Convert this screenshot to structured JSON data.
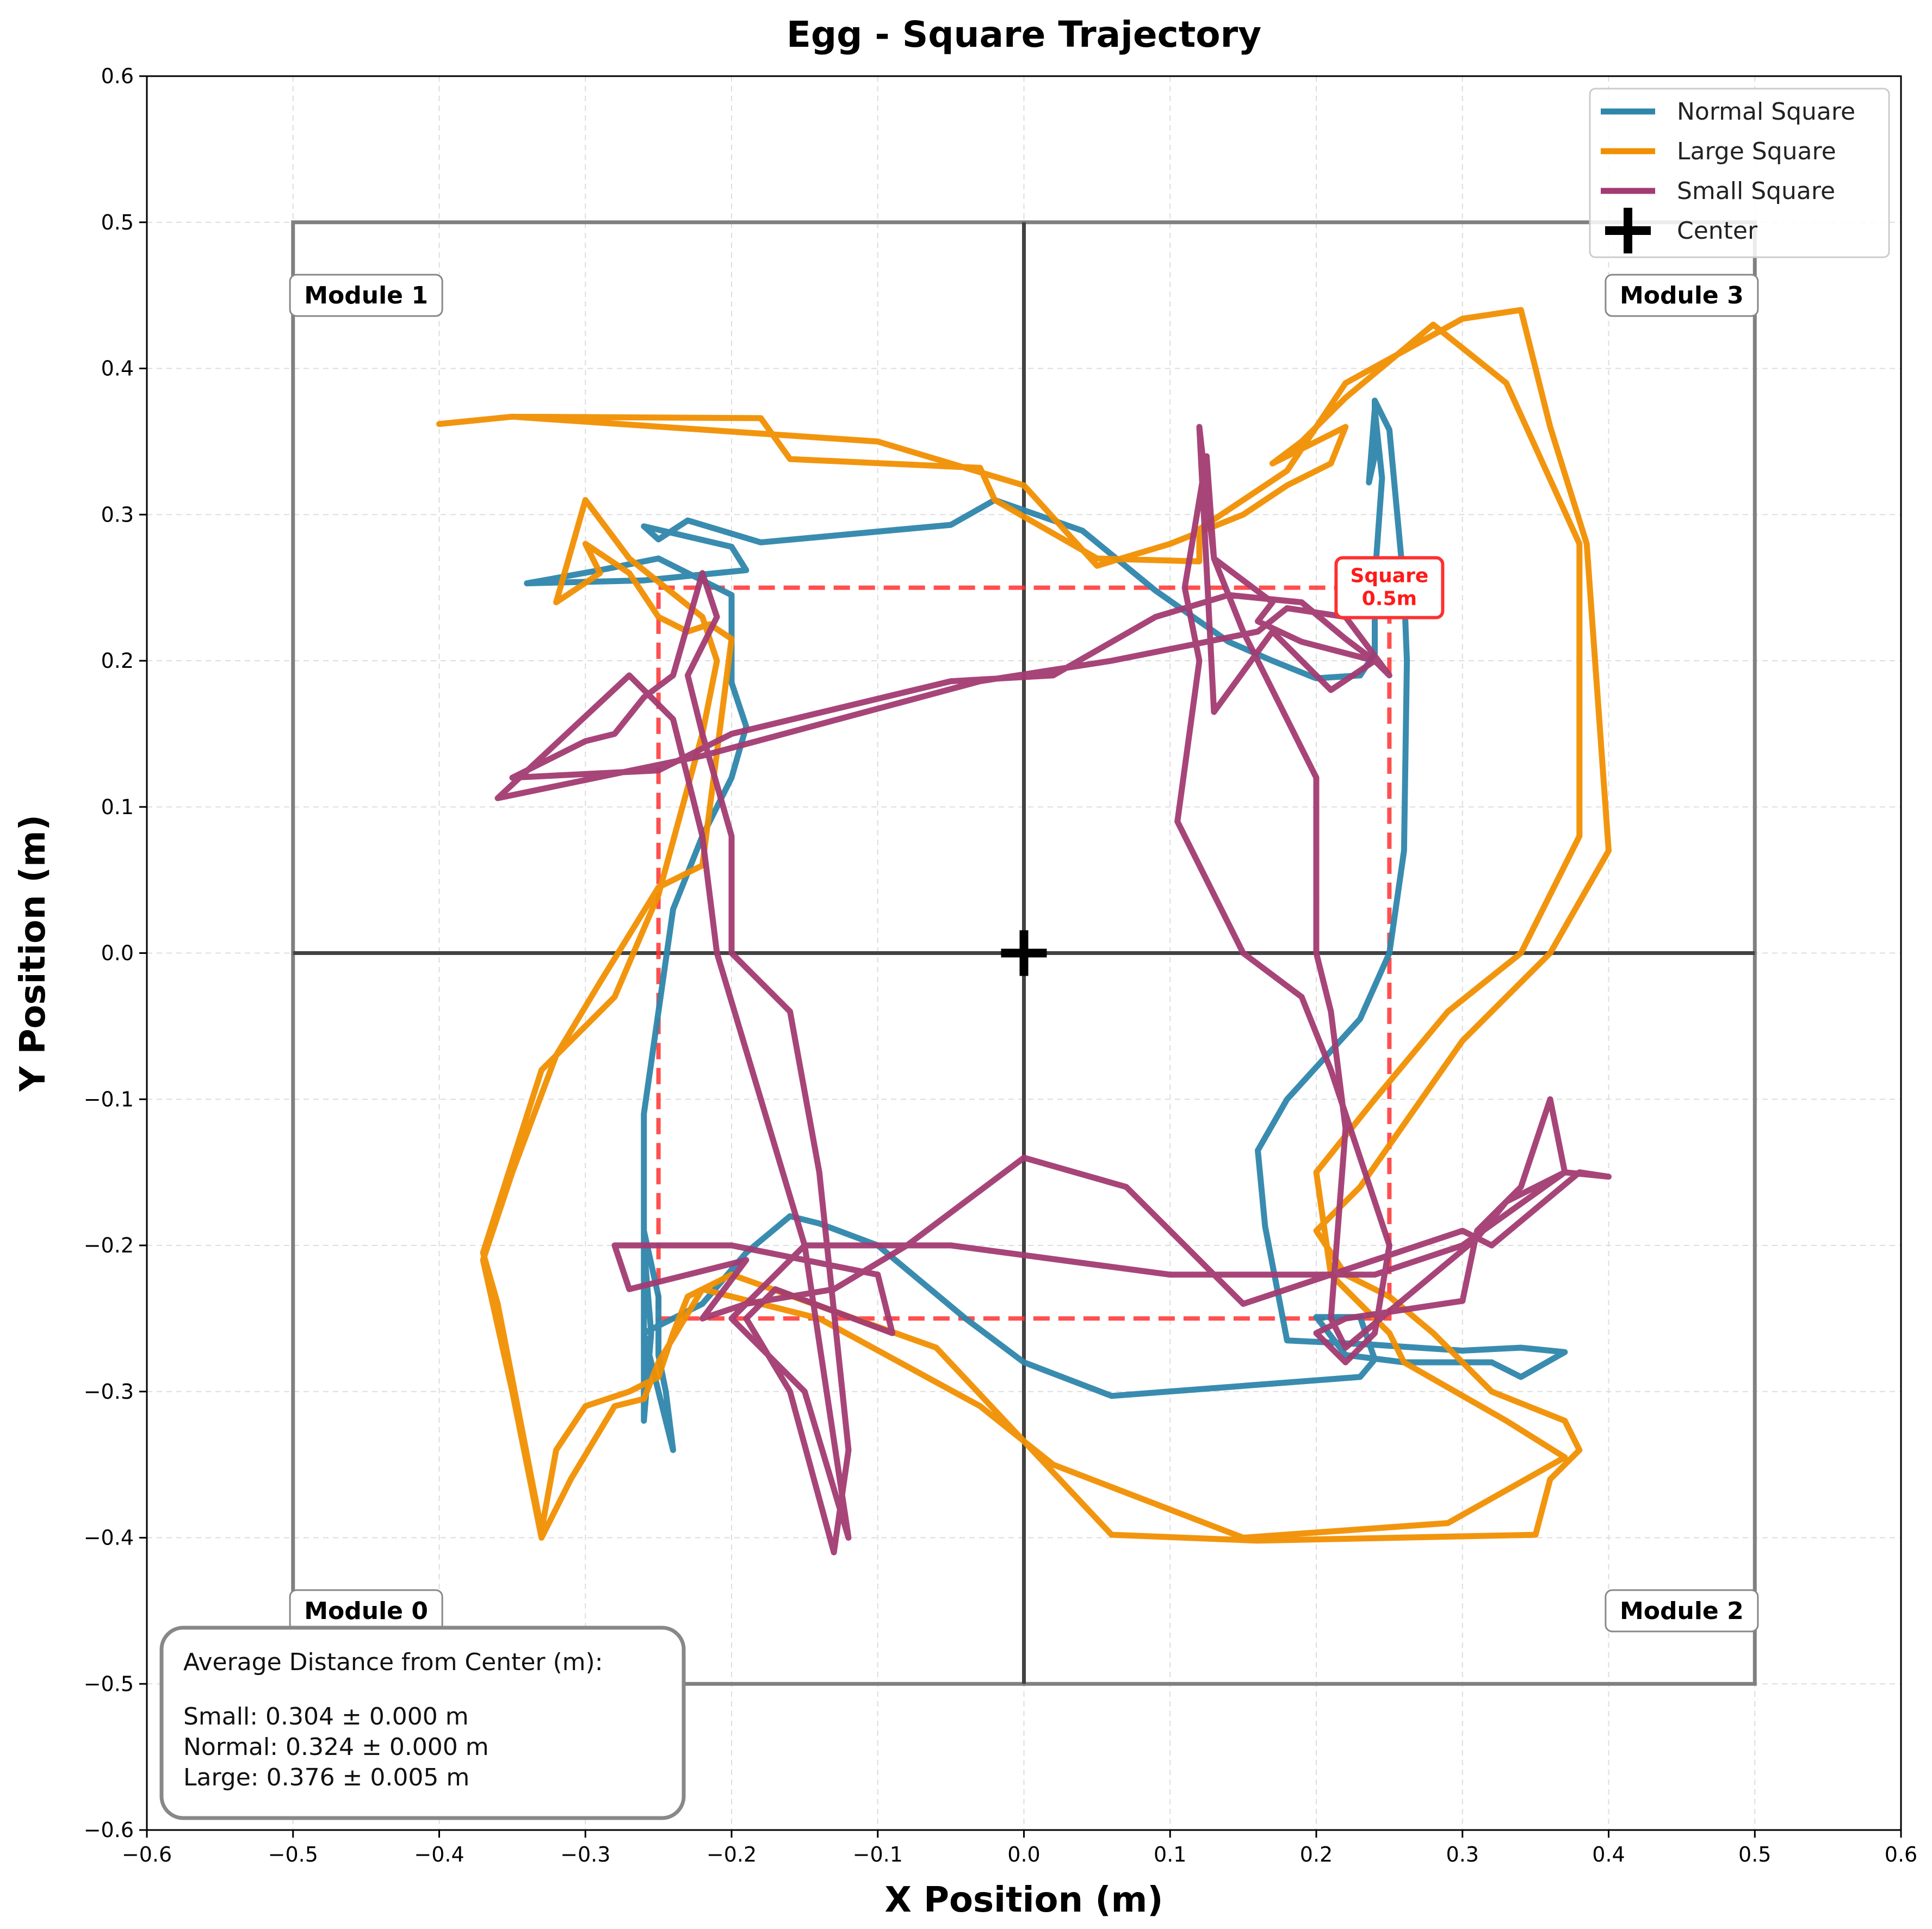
{
  "chart_data": {
    "type": "line",
    "title": "Egg - Square Trajectory",
    "xlabel": "X Position (m)",
    "ylabel": "Y Position (m)",
    "xlim": [
      -0.6,
      0.6
    ],
    "ylim": [
      -0.6,
      0.6
    ],
    "xticks": [
      "−0.6",
      "−0.5",
      "−0.4",
      "−0.3",
      "−0.2",
      "−0.1",
      "0.0",
      "0.1",
      "0.2",
      "0.3",
      "0.4",
      "0.5",
      "0.6"
    ],
    "yticks": [
      "−0.6",
      "−0.5",
      "−0.4",
      "−0.3",
      "−0.2",
      "−0.1",
      "0.0",
      "0.1",
      "0.2",
      "0.3",
      "0.4",
      "0.5",
      "0.6"
    ],
    "grid": true,
    "legend_position": "top-right",
    "legend": [
      "Normal Square",
      "Large Square",
      "Small Square",
      "Center"
    ],
    "colors": {
      "normal": "#2e86ab",
      "large": "#f18f01",
      "small": "#a23b72",
      "center": "#000000",
      "target_square": "#ff3030",
      "modules": "#808080"
    },
    "modules": [
      {
        "label": "Module 0",
        "x": -0.5,
        "y": -0.5,
        "w": 0.5,
        "h": 0.5,
        "label_x": -0.45,
        "label_y": -0.45
      },
      {
        "label": "Module 1",
        "x": -0.5,
        "y": 0.0,
        "w": 0.5,
        "h": 0.5,
        "label_x": -0.45,
        "label_y": 0.45
      },
      {
        "label": "Module 2",
        "x": 0.0,
        "y": -0.5,
        "w": 0.5,
        "h": 0.5,
        "label_x": 0.45,
        "label_y": -0.45
      },
      {
        "label": "Module 3",
        "x": 0.0,
        "y": 0.0,
        "w": 0.5,
        "h": 0.5,
        "label_x": 0.45,
        "label_y": 0.45
      }
    ],
    "target_square": {
      "label": "Square\n0.5m",
      "x0": -0.25,
      "y0": -0.25,
      "x1": 0.25,
      "y1": 0.25,
      "label_x": 0.25,
      "label_y": 0.25
    },
    "center_marker": {
      "name": "Center",
      "x": 0.0,
      "y": 0.0
    },
    "stats_box": {
      "title": "Average Distance from Center (m):",
      "lines": [
        "Small: 0.304 ± 0.000 m",
        "Normal: 0.324 ± 0.000 m",
        "Large: 0.376 ± 0.005 m"
      ]
    },
    "series": [
      {
        "name": "Normal Square",
        "key": "normal",
        "points": [
          [
            -0.34,
            0.253
          ],
          [
            -0.26,
            0.255
          ],
          [
            -0.19,
            0.262
          ],
          [
            -0.2,
            0.278
          ],
          [
            -0.26,
            0.292
          ],
          [
            -0.25,
            0.283
          ],
          [
            -0.23,
            0.296
          ],
          [
            -0.18,
            0.281
          ],
          [
            -0.05,
            0.293
          ],
          [
            -0.02,
            0.31
          ],
          [
            0.04,
            0.289
          ],
          [
            0.09,
            0.248
          ],
          [
            0.14,
            0.213
          ],
          [
            0.17,
            0.2
          ],
          [
            0.2,
            0.188
          ],
          [
            0.23,
            0.19
          ],
          [
            0.24,
            0.205
          ],
          [
            0.24,
            0.256
          ],
          [
            0.245,
            0.325
          ],
          [
            0.24,
            0.372
          ],
          [
            0.236,
            0.322
          ],
          [
            0.24,
            0.34
          ],
          [
            0.24,
            0.378
          ],
          [
            0.25,
            0.358
          ],
          [
            0.26,
            0.25
          ],
          [
            0.262,
            0.2
          ],
          [
            0.26,
            0.07
          ],
          [
            0.25,
            0.0
          ],
          [
            0.23,
            -0.045
          ],
          [
            0.18,
            -0.1
          ],
          [
            0.16,
            -0.135
          ],
          [
            0.165,
            -0.187
          ],
          [
            0.18,
            -0.265
          ],
          [
            0.24,
            -0.268
          ],
          [
            0.3,
            -0.272
          ],
          [
            0.34,
            -0.27
          ],
          [
            0.37,
            -0.273
          ],
          [
            0.34,
            -0.29
          ],
          [
            0.32,
            -0.28
          ],
          [
            0.26,
            -0.28
          ],
          [
            0.22,
            -0.275
          ],
          [
            0.2,
            -0.249
          ],
          [
            0.23,
            -0.249
          ],
          [
            0.24,
            -0.278
          ],
          [
            0.23,
            -0.29
          ],
          [
            0.06,
            -0.303
          ],
          [
            0.0,
            -0.28
          ],
          [
            -0.04,
            -0.25
          ],
          [
            -0.1,
            -0.2
          ],
          [
            -0.14,
            -0.185
          ],
          [
            -0.16,
            -0.18
          ],
          [
            -0.19,
            -0.205
          ],
          [
            -0.22,
            -0.24
          ],
          [
            -0.26,
            -0.26
          ],
          [
            -0.24,
            -0.34
          ],
          [
            -0.245,
            -0.3
          ],
          [
            -0.25,
            -0.275
          ],
          [
            -0.25,
            -0.235
          ],
          [
            -0.26,
            -0.19
          ],
          [
            -0.26,
            -0.22
          ],
          [
            -0.26,
            -0.32
          ],
          [
            -0.255,
            -0.26
          ],
          [
            -0.26,
            -0.2
          ],
          [
            -0.26,
            -0.11
          ],
          [
            -0.25,
            -0.04
          ],
          [
            -0.24,
            0.03
          ],
          [
            -0.22,
            0.08
          ],
          [
            -0.2,
            0.12
          ],
          [
            -0.19,
            0.155
          ],
          [
            -0.2,
            0.185
          ],
          [
            -0.2,
            0.245
          ],
          [
            -0.25,
            0.27
          ],
          [
            -0.29,
            0.262
          ],
          [
            -0.34,
            0.253
          ]
        ]
      },
      {
        "name": "Large Square",
        "key": "large",
        "points": [
          [
            -0.4,
            0.362
          ],
          [
            -0.35,
            0.367
          ],
          [
            -0.18,
            0.366
          ],
          [
            -0.16,
            0.338
          ],
          [
            -0.03,
            0.332
          ],
          [
            -0.02,
            0.31
          ],
          [
            0.05,
            0.27
          ],
          [
            0.12,
            0.268
          ],
          [
            0.12,
            0.29
          ],
          [
            0.18,
            0.33
          ],
          [
            0.22,
            0.39
          ],
          [
            0.3,
            0.434
          ],
          [
            0.34,
            0.44
          ],
          [
            0.36,
            0.36
          ],
          [
            0.385,
            0.28
          ],
          [
            0.4,
            0.07
          ],
          [
            0.36,
            0.0
          ],
          [
            0.3,
            -0.06
          ],
          [
            0.23,
            -0.16
          ],
          [
            0.2,
            -0.19
          ],
          [
            0.22,
            -0.22
          ],
          [
            0.25,
            -0.235
          ],
          [
            0.28,
            -0.26
          ],
          [
            0.3,
            -0.28
          ],
          [
            0.32,
            -0.3
          ],
          [
            0.37,
            -0.32
          ],
          [
            0.38,
            -0.34
          ],
          [
            0.36,
            -0.36
          ],
          [
            0.35,
            -0.398
          ],
          [
            0.16,
            -0.402
          ],
          [
            0.06,
            -0.398
          ],
          [
            -0.06,
            -0.27
          ],
          [
            -0.2,
            -0.22
          ],
          [
            -0.23,
            -0.235
          ],
          [
            -0.24,
            -0.26
          ],
          [
            -0.25,
            -0.29
          ],
          [
            -0.27,
            -0.3
          ],
          [
            -0.3,
            -0.31
          ],
          [
            -0.32,
            -0.34
          ],
          [
            -0.33,
            -0.395
          ],
          [
            -0.36,
            -0.24
          ],
          [
            -0.37,
            -0.205
          ],
          [
            -0.33,
            -0.08
          ],
          [
            -0.28,
            -0.03
          ],
          [
            -0.25,
            0.04
          ],
          [
            -0.22,
            0.15
          ],
          [
            -0.21,
            0.2
          ],
          [
            -0.22,
            0.23
          ],
          [
            -0.27,
            0.27
          ],
          [
            -0.3,
            0.31
          ],
          [
            -0.32,
            0.24
          ],
          [
            -0.29,
            0.26
          ],
          [
            -0.3,
            0.28
          ],
          [
            -0.27,
            0.26
          ],
          [
            -0.25,
            0.23
          ],
          [
            -0.23,
            0.22
          ],
          [
            -0.215,
            0.225
          ],
          [
            -0.2,
            0.215
          ],
          [
            -0.22,
            0.06
          ],
          [
            -0.25,
            0.045
          ],
          [
            -0.29,
            -0.02
          ],
          [
            -0.32,
            -0.07
          ],
          [
            -0.35,
            -0.15
          ],
          [
            -0.37,
            -0.21
          ],
          [
            -0.35,
            -0.3
          ],
          [
            -0.33,
            -0.4
          ],
          [
            -0.31,
            -0.36
          ],
          [
            -0.28,
            -0.31
          ],
          [
            -0.26,
            -0.305
          ],
          [
            -0.25,
            -0.28
          ],
          [
            -0.22,
            -0.23
          ],
          [
            -0.18,
            -0.24
          ],
          [
            -0.14,
            -0.25
          ],
          [
            -0.03,
            -0.31
          ],
          [
            0.02,
            -0.35
          ],
          [
            0.15,
            -0.4
          ],
          [
            0.29,
            -0.39
          ],
          [
            0.37,
            -0.345
          ],
          [
            0.33,
            -0.32
          ],
          [
            0.26,
            -0.28
          ],
          [
            0.25,
            -0.26
          ],
          [
            0.21,
            -0.22
          ],
          [
            0.2,
            -0.15
          ],
          [
            0.24,
            -0.1
          ],
          [
            0.29,
            -0.04
          ],
          [
            0.34,
            0.0
          ],
          [
            0.38,
            0.08
          ],
          [
            0.38,
            0.28
          ],
          [
            0.33,
            0.39
          ],
          [
            0.28,
            0.43
          ],
          [
            0.22,
            0.38
          ],
          [
            0.19,
            0.35
          ],
          [
            0.17,
            0.335
          ],
          [
            0.22,
            0.36
          ],
          [
            0.21,
            0.335
          ],
          [
            0.18,
            0.32
          ],
          [
            0.15,
            0.3
          ],
          [
            0.1,
            0.28
          ],
          [
            0.05,
            0.265
          ],
          [
            0.0,
            0.32
          ],
          [
            -0.1,
            0.35
          ],
          [
            -0.35,
            0.367
          ],
          [
            -0.4,
            0.362
          ]
        ]
      },
      {
        "name": "Small Square",
        "key": "small",
        "points": [
          [
            -0.36,
            0.106
          ],
          [
            -0.22,
            0.135
          ],
          [
            -0.03,
            0.186
          ],
          [
            0.06,
            0.2
          ],
          [
            0.16,
            0.22
          ],
          [
            0.18,
            0.236
          ],
          [
            0.22,
            0.23
          ],
          [
            0.25,
            0.19
          ],
          [
            0.24,
            0.2
          ],
          [
            0.19,
            0.213
          ],
          [
            0.16,
            0.227
          ],
          [
            0.17,
            0.24
          ],
          [
            0.13,
            0.27
          ],
          [
            0.125,
            0.34
          ],
          [
            0.11,
            0.25
          ],
          [
            0.12,
            0.2
          ],
          [
            0.105,
            0.09
          ],
          [
            0.15,
            0.0
          ],
          [
            0.19,
            -0.03
          ],
          [
            0.21,
            -0.08
          ],
          [
            0.23,
            -0.14
          ],
          [
            0.25,
            -0.2
          ],
          [
            0.24,
            -0.26
          ],
          [
            0.22,
            -0.28
          ],
          [
            0.2,
            -0.26
          ],
          [
            0.22,
            -0.25
          ],
          [
            0.3,
            -0.238
          ],
          [
            0.31,
            -0.19
          ],
          [
            0.34,
            -0.16
          ],
          [
            0.36,
            -0.1
          ],
          [
            0.37,
            -0.15
          ],
          [
            0.4,
            -0.153
          ],
          [
            0.38,
            -0.15
          ],
          [
            0.32,
            -0.2
          ],
          [
            0.3,
            -0.19
          ],
          [
            0.24,
            -0.21
          ],
          [
            0.18,
            -0.23
          ],
          [
            0.15,
            -0.24
          ],
          [
            0.1,
            -0.19
          ],
          [
            0.07,
            -0.16
          ],
          [
            0.0,
            -0.14
          ],
          [
            -0.08,
            -0.2
          ],
          [
            -0.13,
            -0.23
          ],
          [
            -0.19,
            -0.24
          ],
          [
            -0.22,
            -0.25
          ],
          [
            -0.19,
            -0.21
          ],
          [
            -0.23,
            -0.22
          ],
          [
            -0.27,
            -0.23
          ],
          [
            -0.28,
            -0.2
          ],
          [
            -0.2,
            -0.2
          ],
          [
            -0.1,
            -0.22
          ],
          [
            -0.09,
            -0.26
          ],
          [
            -0.17,
            -0.23
          ],
          [
            -0.19,
            -0.25
          ],
          [
            -0.16,
            -0.3
          ],
          [
            -0.13,
            -0.41
          ],
          [
            -0.12,
            -0.34
          ],
          [
            -0.14,
            -0.15
          ],
          [
            -0.16,
            -0.04
          ],
          [
            -0.2,
            0.0
          ],
          [
            -0.2,
            0.08
          ],
          [
            -0.22,
            0.15
          ],
          [
            -0.23,
            0.19
          ],
          [
            -0.21,
            0.23
          ],
          [
            -0.22,
            0.26
          ],
          [
            -0.24,
            0.19
          ],
          [
            -0.26,
            0.175
          ],
          [
            -0.28,
            0.15
          ],
          [
            -0.3,
            0.145
          ],
          [
            -0.35,
            0.12
          ],
          [
            -0.25,
            0.125
          ],
          [
            -0.2,
            0.15
          ],
          [
            -0.05,
            0.186
          ],
          [
            0.02,
            0.19
          ],
          [
            0.09,
            0.23
          ],
          [
            0.14,
            0.245
          ],
          [
            0.19,
            0.24
          ],
          [
            0.22,
            0.215
          ],
          [
            0.24,
            0.2
          ],
          [
            0.21,
            0.18
          ],
          [
            0.17,
            0.22
          ],
          [
            0.13,
            0.165
          ],
          [
            0.12,
            0.36
          ],
          [
            0.13,
            0.27
          ],
          [
            0.15,
            0.22
          ],
          [
            0.2,
            0.12
          ],
          [
            0.2,
            0.0
          ],
          [
            0.21,
            -0.04
          ],
          [
            0.22,
            -0.12
          ],
          [
            0.21,
            -0.25
          ],
          [
            0.22,
            -0.27
          ],
          [
            0.31,
            -0.195
          ],
          [
            0.33,
            -0.17
          ],
          [
            0.37,
            -0.15
          ],
          [
            0.3,
            -0.2
          ],
          [
            0.24,
            -0.22
          ],
          [
            0.22,
            -0.22
          ],
          [
            0.1,
            -0.22
          ],
          [
            -0.05,
            -0.2
          ],
          [
            -0.15,
            -0.2
          ],
          [
            -0.2,
            -0.25
          ],
          [
            -0.15,
            -0.3
          ],
          [
            -0.12,
            -0.4
          ],
          [
            -0.15,
            -0.2
          ],
          [
            -0.18,
            -0.1
          ],
          [
            -0.21,
            0.0
          ],
          [
            -0.22,
            0.08
          ],
          [
            -0.24,
            0.16
          ],
          [
            -0.27,
            0.19
          ],
          [
            -0.36,
            0.106
          ]
        ]
      }
    ]
  }
}
